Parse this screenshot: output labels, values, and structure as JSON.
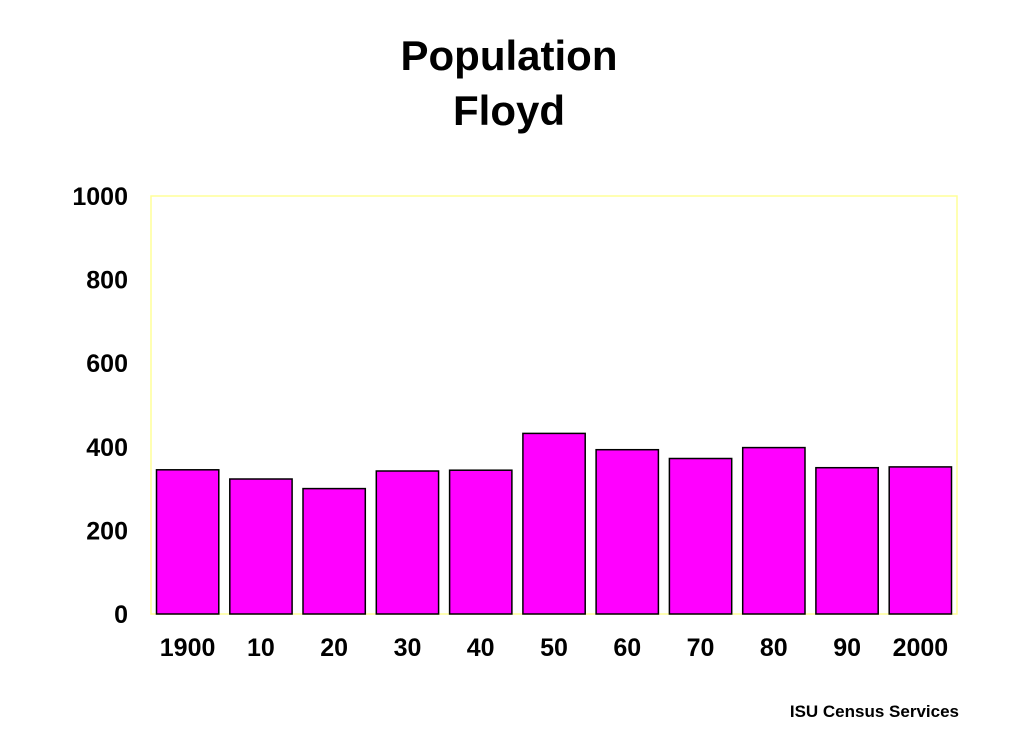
{
  "chart_data": {
    "type": "bar",
    "title": "Population",
    "subtitle": "Floyd",
    "xlabel": "",
    "ylabel": "",
    "categories": [
      "1900",
      "10",
      "20",
      "30",
      "40",
      "50",
      "60",
      "70",
      "80",
      "90",
      "2000"
    ],
    "values": [
      345,
      323,
      300,
      342,
      344,
      432,
      393,
      372,
      398,
      350,
      352
    ],
    "ylim": [
      0,
      1000
    ],
    "yticks": [
      "0",
      "200",
      "400",
      "600",
      "800",
      "1000"
    ],
    "grid": false,
    "legend": "none",
    "bar_color": "#ff00ff",
    "bar_edge_color": "#000000",
    "plot_border_color": "#ffff99"
  },
  "source": "ISU Census Services"
}
